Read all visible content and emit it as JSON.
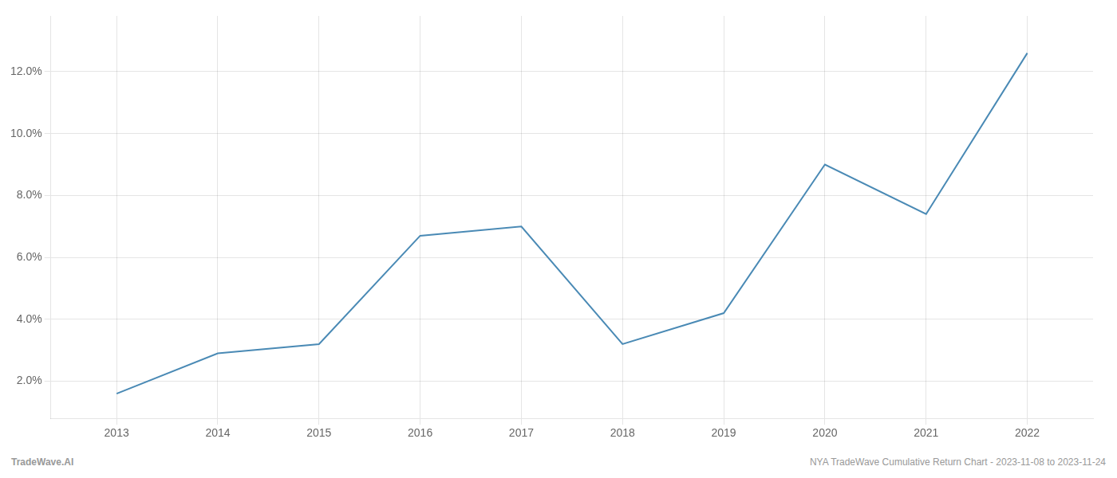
{
  "chart_data": {
    "type": "line",
    "x": [
      2013,
      2014,
      2015,
      2016,
      2017,
      2018,
      2019,
      2020,
      2021,
      2022
    ],
    "values": [
      1.6,
      2.9,
      3.2,
      6.7,
      7.0,
      3.2,
      4.2,
      9.0,
      7.4,
      12.6
    ],
    "color": "#4a8ab5",
    "xlim": [
      2012.35,
      2022.65
    ],
    "xticks": [
      2013,
      2014,
      2015,
      2016,
      2017,
      2018,
      2019,
      2020,
      2021,
      2022
    ],
    "ylim": [
      0.8,
      13.8
    ],
    "yticks": [
      {
        "value": 2.0,
        "label": "2.0%"
      },
      {
        "value": 4.0,
        "label": "4.0%"
      },
      {
        "value": 6.0,
        "label": "6.0%"
      },
      {
        "value": 8.0,
        "label": "8.0%"
      },
      {
        "value": 10.0,
        "label": "10.0%"
      },
      {
        "value": 12.0,
        "label": "12.0%"
      }
    ],
    "grid": true,
    "annotations": [
      "TradeWave.AI",
      "NYA TradeWave Cumulative Return Chart - 2023-11-08 to 2023-11-24"
    ]
  }
}
